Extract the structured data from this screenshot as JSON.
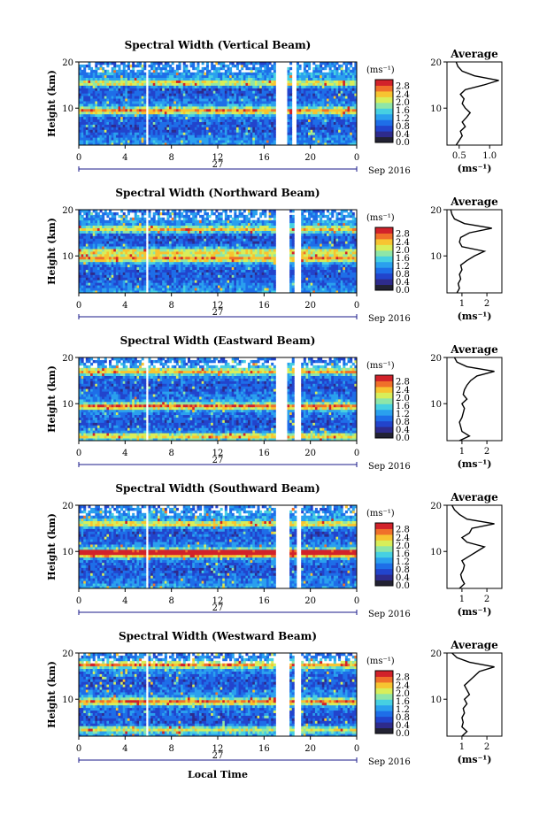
{
  "figure": {
    "xlabel": "Local Time",
    "date_label": "Sep 2016",
    "day_label": "27",
    "colorbar_unit": "(ms⁻¹)",
    "colorbar_ticks": [
      "0.0",
      "0.4",
      "0.8",
      "1.2",
      "1.6",
      "2.0",
      "2.4",
      "2.8"
    ],
    "ylabel": "Height (km)",
    "avg_title": "Average",
    "avg_xlabel": "(ms⁻¹)"
  },
  "colors": {
    "colormap": [
      "#2e2b8c",
      "#2244cc",
      "#1e6ee8",
      "#2aa0ee",
      "#46d0e2",
      "#8ee6a8",
      "#d8ee5a",
      "#f7c431",
      "#f0702a",
      "#d2222a"
    ],
    "zero_bin": "#222233",
    "gap": "#ffffff",
    "line": "#000000"
  },
  "chart_data": [
    {
      "type": "heatmap",
      "title": "Spectral Width (Vertical Beam)",
      "x_ticks": [
        "0",
        "4",
        "8",
        "12",
        "16",
        "20",
        "0"
      ],
      "xlim": [
        0,
        24
      ],
      "ylim": [
        2,
        20
      ],
      "y_ticks": [
        "10",
        "20"
      ],
      "colorbar_range": [
        0,
        2.9
      ],
      "data_gaps_hours": [
        [
          5.8,
          6.0
        ],
        [
          17.0,
          17.9
        ],
        [
          18.5,
          18.8
        ]
      ],
      "layers": [
        {
          "height_km": 15.5,
          "value": 2.4
        },
        {
          "height_km": 9.5,
          "value": 2.7
        }
      ],
      "average_profile": {
        "x_ticks": [
          "0.5",
          "1.0"
        ],
        "xlim": [
          0.3,
          1.2
        ],
        "height_km": [
          2,
          3,
          4,
          5,
          6,
          7,
          8,
          9,
          10,
          11,
          12,
          13,
          14,
          15,
          16,
          17,
          18,
          19,
          20
        ],
        "value": [
          0.45,
          0.5,
          0.55,
          0.52,
          0.6,
          0.55,
          0.62,
          0.68,
          0.6,
          0.55,
          0.58,
          0.52,
          0.6,
          0.9,
          1.15,
          0.75,
          0.55,
          0.48,
          0.45
        ]
      }
    },
    {
      "type": "heatmap",
      "title": "Spectral Width (Northward Beam)",
      "x_ticks": [
        "0",
        "4",
        "8",
        "12",
        "16",
        "20",
        "0"
      ],
      "xlim": [
        0,
        24
      ],
      "ylim": [
        2,
        20
      ],
      "y_ticks": [
        "10",
        "20"
      ],
      "colorbar_range": [
        0,
        2.9
      ],
      "data_gaps_hours": [
        [
          5.8,
          6.0
        ],
        [
          17.0,
          18.2
        ],
        [
          18.7,
          19.2
        ]
      ],
      "layers": [
        {
          "height_km": 15.8,
          "value": 2.5
        },
        {
          "height_km": 11.0,
          "value": 2.2
        },
        {
          "height_km": 9.5,
          "value": 2.6
        }
      ],
      "average_profile": {
        "x_ticks": [
          "1",
          "2"
        ],
        "xlim": [
          0.4,
          2.6
        ],
        "height_km": [
          2,
          3,
          4,
          5,
          6,
          7,
          8,
          9,
          10,
          11,
          12,
          13,
          14,
          15,
          16,
          17,
          18,
          19,
          20
        ],
        "value": [
          0.8,
          0.9,
          0.85,
          0.95,
          0.9,
          1.0,
          0.95,
          1.2,
          1.5,
          1.9,
          1.0,
          0.9,
          0.95,
          1.3,
          2.2,
          1.1,
          0.7,
          0.6,
          0.55
        ]
      }
    },
    {
      "type": "heatmap",
      "title": "Spectral Width (Eastward Beam)",
      "x_ticks": [
        "0",
        "4",
        "8",
        "12",
        "16",
        "20",
        "0"
      ],
      "xlim": [
        0,
        24
      ],
      "ylim": [
        2,
        20
      ],
      "y_ticks": [
        "10",
        "20"
      ],
      "colorbar_range": [
        0,
        2.9
      ],
      "data_gaps_hours": [
        [
          5.8,
          6.0
        ],
        [
          17.0,
          18.0
        ],
        [
          18.6,
          19.2
        ]
      ],
      "layers": [
        {
          "height_km": 17.0,
          "value": 2.3
        },
        {
          "height_km": 9.5,
          "value": 2.8
        },
        {
          "height_km": 3.0,
          "value": 2.2
        }
      ],
      "average_profile": {
        "x_ticks": [
          "1",
          "2"
        ],
        "xlim": [
          0.4,
          2.6
        ],
        "height_km": [
          2,
          3,
          4,
          5,
          6,
          7,
          8,
          9,
          10,
          11,
          12,
          13,
          14,
          15,
          16,
          17,
          18,
          19,
          20
        ],
        "value": [
          0.9,
          1.3,
          1.0,
          0.95,
          0.9,
          1.0,
          1.05,
          1.1,
          1.0,
          1.2,
          1.05,
          1.1,
          1.2,
          1.35,
          1.6,
          2.3,
          1.2,
          0.8,
          0.7
        ]
      }
    },
    {
      "type": "heatmap",
      "title": "Spectral Width (Southward Beam)",
      "x_ticks": [
        "0",
        "4",
        "8",
        "12",
        "16",
        "20",
        "0"
      ],
      "xlim": [
        0,
        24
      ],
      "ylim": [
        2,
        20
      ],
      "y_ticks": [
        "10",
        "20"
      ],
      "colorbar_range": [
        0,
        2.9
      ],
      "data_gaps_hours": [
        [
          5.8,
          6.0
        ],
        [
          17.0,
          18.2
        ],
        [
          18.8,
          19.2
        ]
      ],
      "layers": [
        {
          "height_km": 16.0,
          "value": 2.4
        },
        {
          "height_km": 10.0,
          "value": 2.5
        },
        {
          "height_km": 9.5,
          "value": 2.8
        }
      ],
      "average_profile": {
        "x_ticks": [
          "1",
          "2"
        ],
        "xlim": [
          0.4,
          2.6
        ],
        "height_km": [
          2,
          3,
          4,
          5,
          6,
          7,
          8,
          9,
          10,
          11,
          12,
          13,
          14,
          15,
          16,
          17,
          18,
          19,
          20
        ],
        "value": [
          0.9,
          1.1,
          1.0,
          0.95,
          1.05,
          1.1,
          1.0,
          1.3,
          1.6,
          1.9,
          1.2,
          1.0,
          1.3,
          1.4,
          2.3,
          1.2,
          0.9,
          0.7,
          0.6
        ]
      }
    },
    {
      "type": "heatmap",
      "title": "Spectral Width (Westward Beam)",
      "x_ticks": [
        "0",
        "4",
        "8",
        "12",
        "16",
        "20",
        "0"
      ],
      "xlim": [
        0,
        24
      ],
      "ylim": [
        2,
        20
      ],
      "y_ticks": [
        "10",
        "20"
      ],
      "colorbar_range": [
        0,
        2.9
      ],
      "data_gaps_hours": [
        [
          5.8,
          6.0
        ],
        [
          17.0,
          18.1
        ],
        [
          18.6,
          19.2
        ]
      ],
      "layers": [
        {
          "height_km": 17.5,
          "value": 2.5
        },
        {
          "height_km": 9.5,
          "value": 2.7
        },
        {
          "height_km": 3.5,
          "value": 2.0
        }
      ],
      "average_profile": {
        "x_ticks": [
          "1",
          "2"
        ],
        "xlim": [
          0.4,
          2.6
        ],
        "height_km": [
          2,
          3,
          4,
          5,
          6,
          7,
          8,
          9,
          10,
          11,
          12,
          13,
          14,
          15,
          16,
          17,
          18,
          19,
          20
        ],
        "value": [
          1.0,
          1.2,
          1.0,
          1.05,
          1.0,
          1.1,
          1.05,
          1.2,
          1.1,
          1.3,
          1.2,
          1.1,
          1.3,
          1.5,
          1.7,
          2.3,
          1.3,
          0.8,
          0.6
        ]
      }
    }
  ]
}
